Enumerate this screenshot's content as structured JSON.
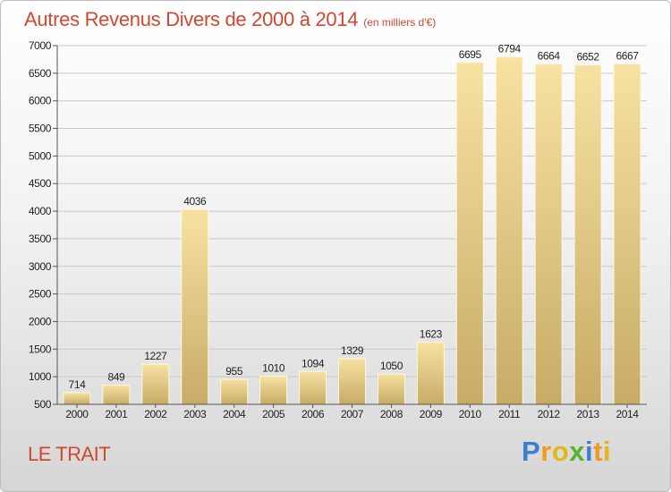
{
  "header": {
    "title": "Autres Revenus Divers de 2000 à 2014",
    "subtitle": "(en milliers d'€)"
  },
  "location": "LE TRAIT",
  "logo": {
    "text": "Proxiti",
    "letters": [
      "P",
      "r",
      "o",
      "x",
      "i",
      "t",
      "i"
    ],
    "colors": [
      "#3a7fd0",
      "#f29a1f",
      "#e2b818",
      "#58b030",
      "#3a7fd0",
      "#f29a1f",
      "#e2b818"
    ]
  },
  "colors": {
    "title": "#d0482f",
    "bar_light": "#f7e2a2",
    "bar_dark": "#c8ab66",
    "grid": "#c8c8c8"
  },
  "chart_data": {
    "type": "bar",
    "title": "Autres Revenus Divers de 2000 à 2014",
    "subtitle": "(en milliers d'€)",
    "xlabel": "",
    "ylabel": "",
    "ylim": [
      500,
      7000
    ],
    "yticks": [
      500,
      1000,
      1500,
      2000,
      2500,
      3000,
      3500,
      4000,
      4500,
      5000,
      5500,
      6000,
      6500,
      7000
    ],
    "grid": true,
    "categories": [
      "2000",
      "2001",
      "2002",
      "2003",
      "2004",
      "2005",
      "2006",
      "2007",
      "2008",
      "2009",
      "2010",
      "2011",
      "2012",
      "2013",
      "2014"
    ],
    "values": [
      714,
      849,
      1227,
      4036,
      955,
      1010,
      1094,
      1329,
      1050,
      1623,
      6695,
      6794,
      6664,
      6652,
      6667
    ]
  }
}
